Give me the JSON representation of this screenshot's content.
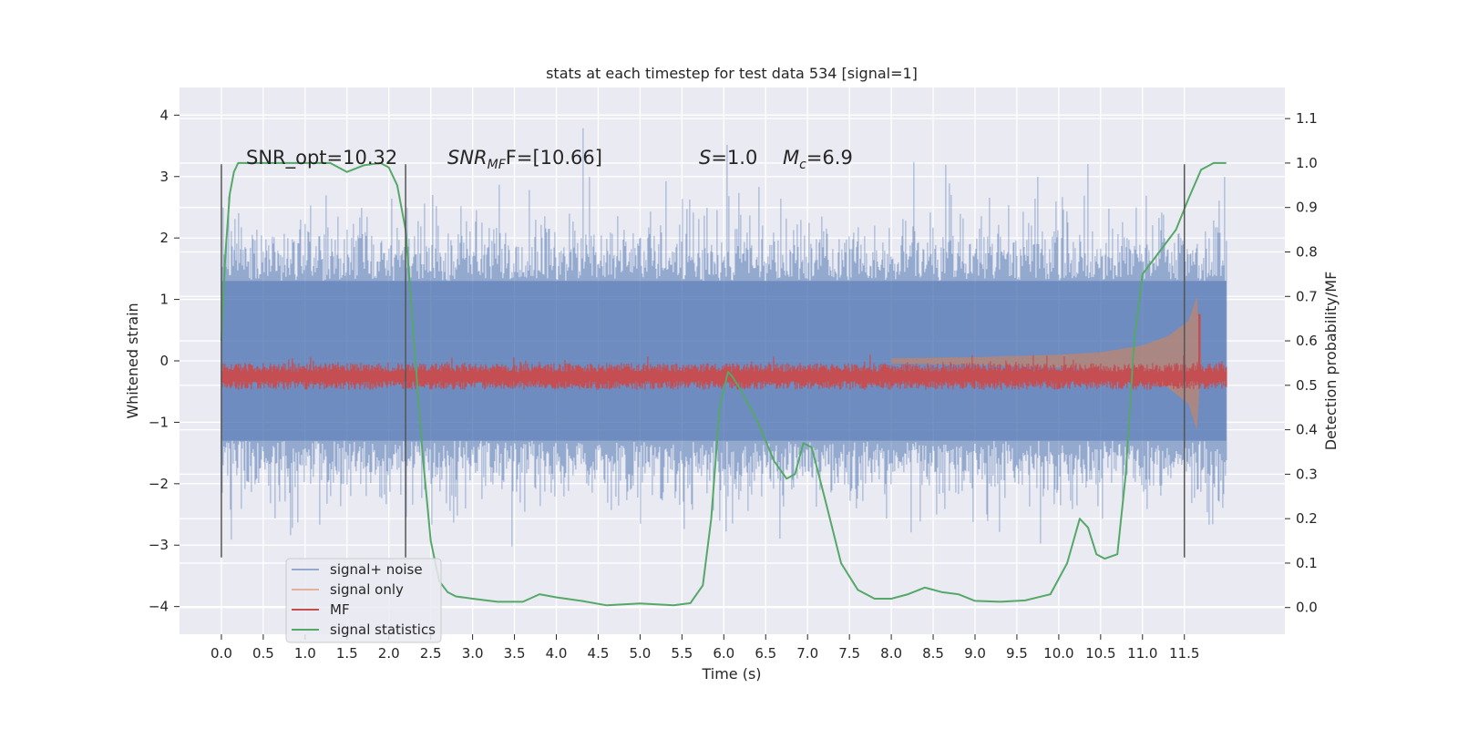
{
  "chart_data": {
    "type": "line",
    "title": "stats at each timestep for test data 534 [signal=1]",
    "xlabel": "Time (s)",
    "ylabel": "Whitened strain",
    "y2label": "Detection probability/MF",
    "xlim": [
      -0.5,
      12.7
    ],
    "ylim": [
      -4.45,
      4.45
    ],
    "y2lim": [
      -0.06,
      1.17
    ],
    "x_ticks": [
      "0.0",
      "0.5",
      "1.0",
      "1.5",
      "2.0",
      "2.5",
      "3.0",
      "3.5",
      "4.0",
      "4.5",
      "5.0",
      "5.5",
      "6.0",
      "6.5",
      "7.0",
      "7.5",
      "8.0",
      "8.5",
      "9.0",
      "9.5",
      "10.0",
      "10.5",
      "11.0",
      "11.5"
    ],
    "y_ticks": [
      "4",
      "3",
      "2",
      "1",
      "0",
      "−1",
      "−2",
      "−3",
      "−4"
    ],
    "y2_ticks": [
      "1.1",
      "1.0",
      "0.9",
      "0.8",
      "0.7",
      "0.6",
      "0.5",
      "0.4",
      "0.3",
      "0.2",
      "0.1",
      "0.0"
    ],
    "grid": true,
    "legend_position": "lower-left",
    "annotations": {
      "snr_opt": "SNR_opt=10.32",
      "snr_mf_main": "SNR",
      "snr_mf_sub": "MF",
      "snr_mf_value": "F=[10.66]",
      "s_label": "S",
      "s_value": "=1.0",
      "mc_main": "M",
      "mc_sub": "c",
      "mc_value": "=6.9"
    },
    "vertical_lines": [
      0.0,
      2.2,
      11.5
    ],
    "vertical_line_range": [
      -3.2,
      3.2
    ],
    "series": [
      {
        "name": "signal+ noise",
        "color": "#4c72b0",
        "style": "noise",
        "x_range": [
          0.0,
          12.0
        ],
        "core_band": [
          -1.3,
          1.3
        ],
        "max_abs": 4.05
      },
      {
        "name": "signal only",
        "color": "#dd8452",
        "style": "chirp",
        "x_range": [
          8.0,
          11.7
        ],
        "envelope": [
          [
            8.0,
            0.04
          ],
          [
            9.0,
            0.06
          ],
          [
            10.0,
            0.1
          ],
          [
            10.5,
            0.14
          ],
          [
            11.0,
            0.25
          ],
          [
            11.3,
            0.4
          ],
          [
            11.55,
            0.65
          ],
          [
            11.65,
            1.05
          ],
          [
            11.7,
            0.0
          ]
        ]
      },
      {
        "name": "MF",
        "color": "#c44e52",
        "style": "mf",
        "axis": "right",
        "x_range": [
          0.0,
          12.0
        ],
        "band": [
          0.5,
          0.54
        ],
        "spike": [
          11.68,
          0.66
        ]
      },
      {
        "name": "signal statistics",
        "color": "#55a868",
        "axis": "right",
        "x": [
          0.0,
          0.05,
          0.1,
          0.15,
          0.2,
          0.3,
          0.5,
          1.0,
          1.3,
          1.5,
          1.7,
          1.9,
          2.0,
          2.1,
          2.2,
          2.3,
          2.4,
          2.5,
          2.6,
          2.7,
          2.8,
          3.0,
          3.3,
          3.6,
          3.8,
          4.0,
          4.3,
          4.6,
          5.0,
          5.4,
          5.6,
          5.75,
          5.85,
          5.95,
          6.05,
          6.1,
          6.2,
          6.4,
          6.6,
          6.75,
          6.85,
          6.95,
          7.05,
          7.2,
          7.4,
          7.6,
          7.8,
          8.0,
          8.2,
          8.4,
          8.6,
          8.8,
          9.0,
          9.3,
          9.6,
          9.9,
          10.1,
          10.25,
          10.35,
          10.45,
          10.55,
          10.7,
          10.8,
          10.9,
          11.0,
          11.2,
          11.4,
          11.55,
          11.7,
          11.85,
          12.0
        ],
        "y": [
          0.6,
          0.8,
          0.93,
          0.98,
          1.0,
          1.0,
          1.0,
          1.0,
          1.0,
          0.98,
          0.995,
          1.0,
          0.99,
          0.95,
          0.85,
          0.6,
          0.35,
          0.15,
          0.06,
          0.035,
          0.025,
          0.02,
          0.013,
          0.013,
          0.03,
          0.023,
          0.015,
          0.005,
          0.009,
          0.005,
          0.01,
          0.05,
          0.2,
          0.45,
          0.53,
          0.52,
          0.49,
          0.42,
          0.33,
          0.29,
          0.3,
          0.37,
          0.36,
          0.25,
          0.1,
          0.04,
          0.02,
          0.02,
          0.03,
          0.045,
          0.035,
          0.03,
          0.015,
          0.013,
          0.016,
          0.03,
          0.1,
          0.2,
          0.18,
          0.12,
          0.11,
          0.12,
          0.3,
          0.6,
          0.75,
          0.8,
          0.85,
          0.92,
          0.985,
          1.0,
          1.0
        ]
      }
    ]
  }
}
